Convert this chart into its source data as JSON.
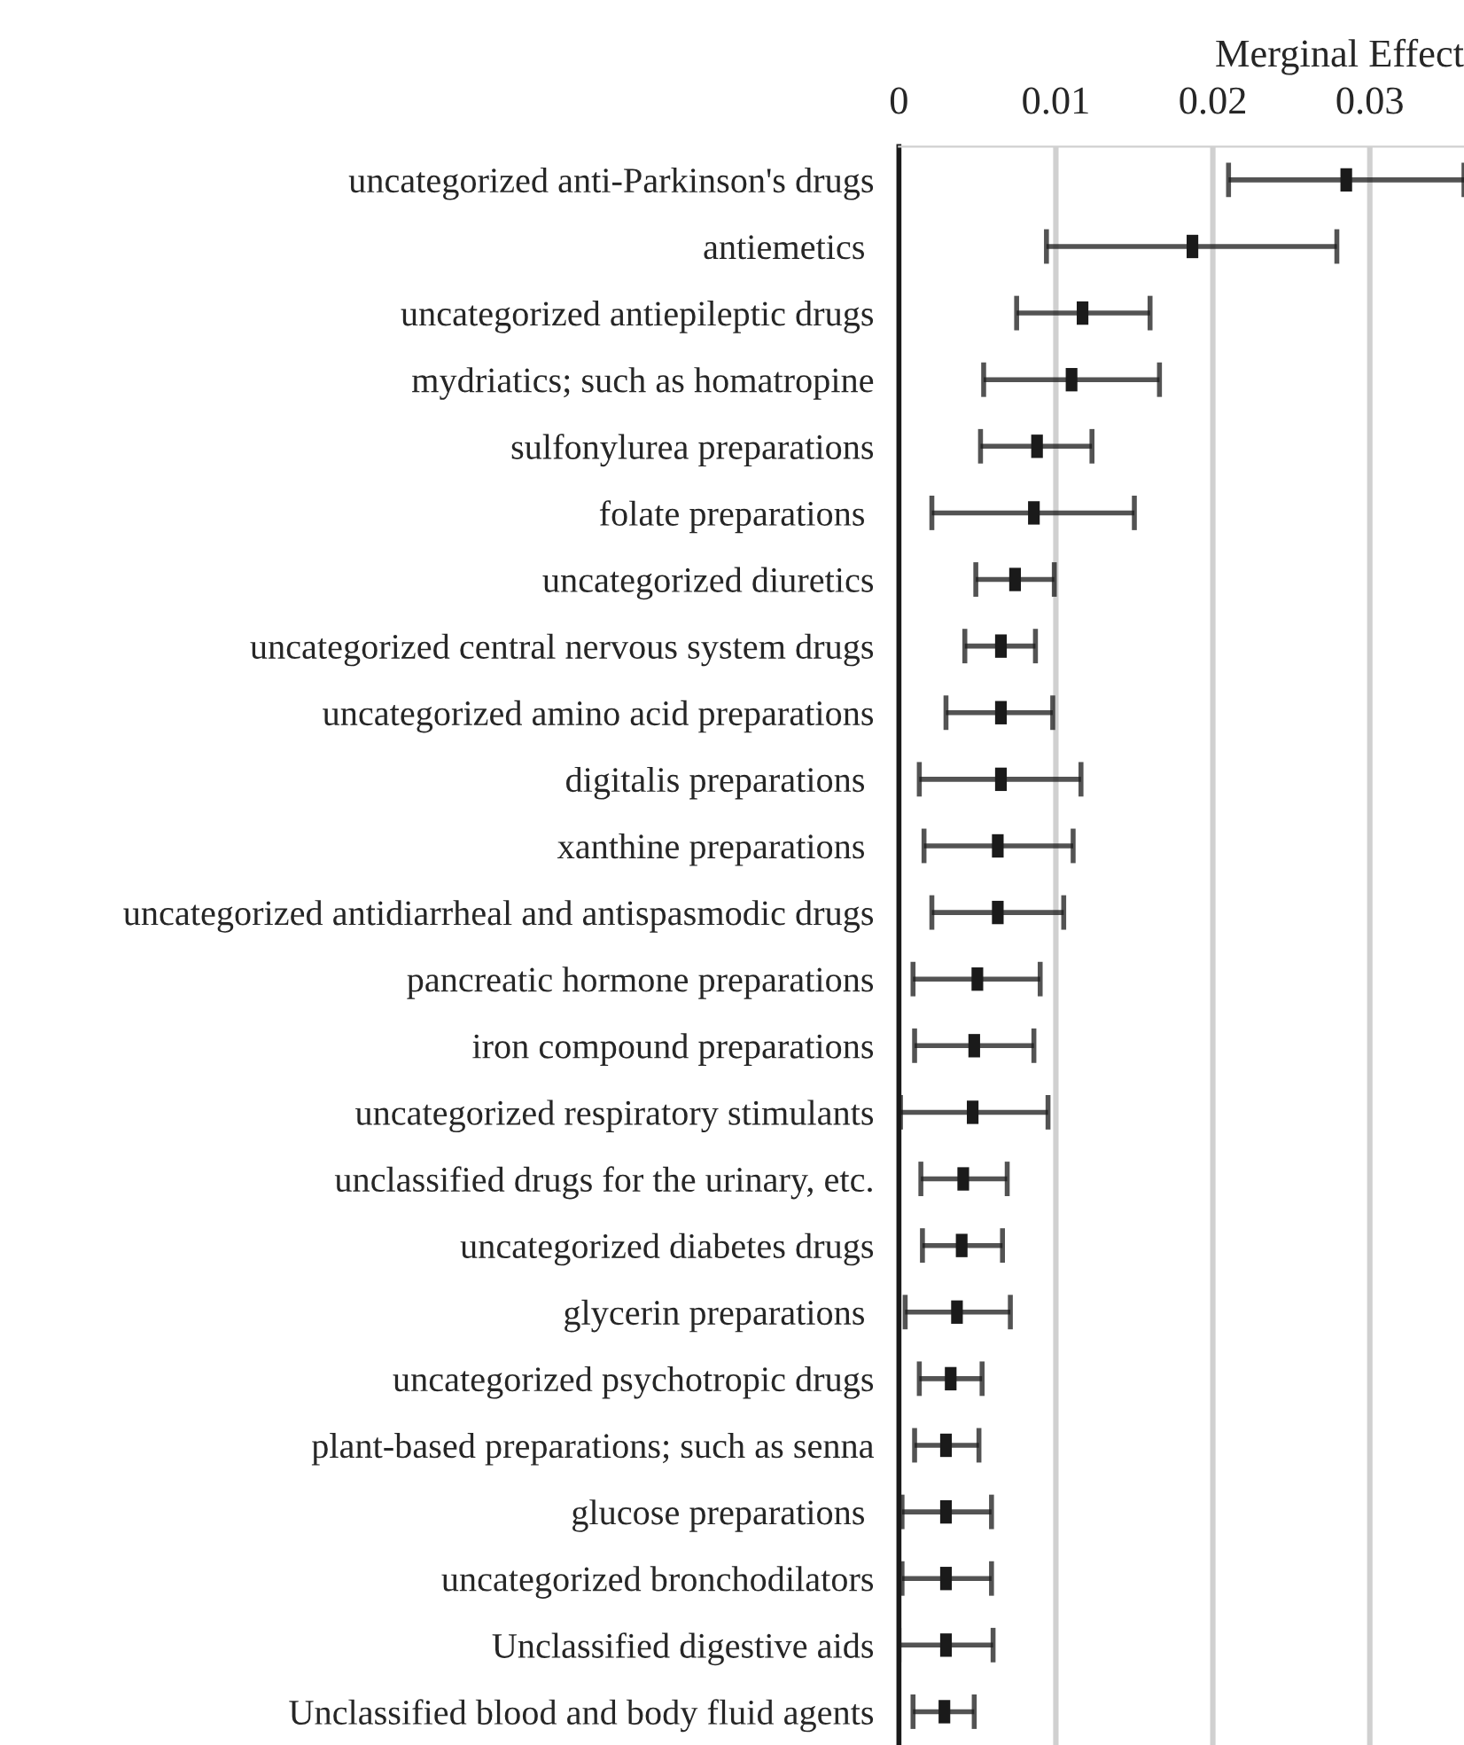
{
  "chart_data": {
    "type": "scatter",
    "orientation": "horizontal",
    "xlabel": "Merginal Effect",
    "categories": [
      "uncategorized anti-Parkinson's drugs",
      "antiemetics ",
      "uncategorized antiepileptic drugs",
      "mydriatics; such as homatropine",
      "sulfonylurea preparations",
      "folate preparations ",
      "uncategorized diuretics",
      "uncategorized central nervous system drugs",
      "uncategorized amino acid preparations",
      "digitalis preparations ",
      "xanthine preparations ",
      "uncategorized antidiarrheal and antispasmodic drugs",
      "pancreatic hormone preparations",
      "iron compound preparations",
      "uncategorized respiratory stimulants",
      "unclassified drugs for the urinary, etc.",
      "uncategorized diabetes drugs",
      "glycerin preparations ",
      "uncategorized psychotropic drugs",
      "plant-based preparations; such as senna",
      "glucose preparations ",
      "uncategorized bronchodilators",
      "Unclassified digestive aids",
      "Unclassified blood and body fluid agents"
    ],
    "values": [
      0.0285,
      0.0187,
      0.0117,
      0.011,
      0.0088,
      0.0086,
      0.0074,
      0.0065,
      0.0065,
      0.0065,
      0.0063,
      0.0063,
      0.005,
      0.0048,
      0.0047,
      0.0041,
      0.004,
      0.0037,
      0.0033,
      0.003,
      0.003,
      0.003,
      0.003,
      0.0029
    ],
    "errors": [
      [
        0.021,
        0.036
      ],
      [
        0.0094,
        0.0279
      ],
      [
        0.0075,
        0.016
      ],
      [
        0.0054,
        0.0166
      ],
      [
        0.0052,
        0.0123
      ],
      [
        0.0021,
        0.015
      ],
      [
        0.0049,
        0.0099
      ],
      [
        0.0042,
        0.0087
      ],
      [
        0.003,
        0.0098
      ],
      [
        0.0013,
        0.0116
      ],
      [
        0.0016,
        0.0111
      ],
      [
        0.0021,
        0.0105
      ],
      [
        0.0009,
        0.009
      ],
      [
        0.001,
        0.0086
      ],
      [
        0.0001,
        0.0095
      ],
      [
        0.0014,
        0.0069
      ],
      [
        0.0015,
        0.0066
      ],
      [
        0.0004,
        0.0071
      ],
      [
        0.0013,
        0.0053
      ],
      [
        0.001,
        0.0051
      ],
      [
        0.0002,
        0.0059
      ],
      [
        0.0002,
        0.0059
      ],
      [
        0.0,
        0.006
      ],
      [
        0.0009,
        0.0048
      ]
    ],
    "color": "#1a1a1a",
    "xlim": [
      0,
      0.036
    ],
    "xticks": [
      0,
      0.01,
      0.02,
      0.03
    ],
    "grid": "x",
    "legend": false
  }
}
